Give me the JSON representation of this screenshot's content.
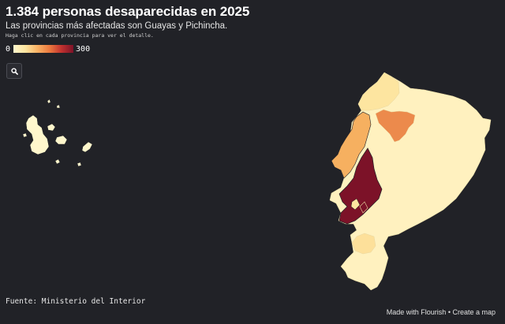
{
  "header": {
    "title": "1.384 personas desaparecidas en 2025",
    "subtitle": "Las provincias más afectadas son Guayas y Pichincha.",
    "hint": "Haga clic en cada provincia para ver el detalle."
  },
  "legend": {
    "min_label": "0",
    "max_label": "300",
    "colors": [
      "#fff7cc",
      "#fde5a0",
      "#f9b265",
      "#ec7a3f",
      "#c1322f",
      "#7c1228"
    ]
  },
  "controls": {
    "search_icon": "search-icon"
  },
  "map": {
    "regions": [
      {
        "key": "guayas",
        "color": "#7c1228"
      },
      {
        "key": "pichincha",
        "color": "#ec8a4c"
      },
      {
        "key": "manabi",
        "color": "#f6b060"
      },
      {
        "key": "esmeraldas",
        "color": "#fde5a0"
      },
      {
        "key": "el_oro",
        "color": "#fde09a"
      },
      {
        "key": "other",
        "color": "#fff1bf"
      },
      {
        "key": "galapagos",
        "color": "#fff7cc"
      }
    ]
  },
  "footer": {
    "source": "Fuente: Ministerio del Interior",
    "made_with": "Made with Flourish",
    "separator": " • ",
    "create_map": "Create a map"
  }
}
